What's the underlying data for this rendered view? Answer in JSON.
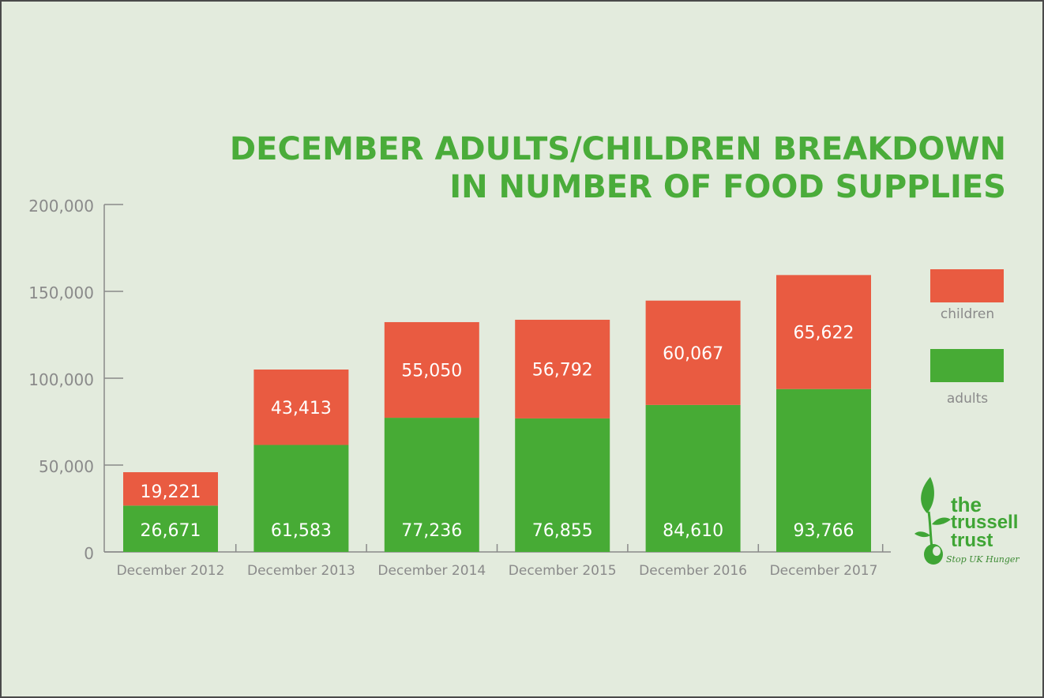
{
  "title_line1": "DECEMBER ADULTS/CHILDREN BREAKDOWN",
  "title_line2": "IN NUMBER OF FOOD SUPPLIES",
  "colors": {
    "background": "#e3ebdd",
    "adults": "#47ab35",
    "children": "#e95b41",
    "title": "#4aac3a",
    "axis": "#8a8a8a"
  },
  "legend": {
    "children_label": "children",
    "adults_label": "adults"
  },
  "logo": {
    "line1": "the",
    "line2": "trussell",
    "line3": "trust",
    "tagline": "Stop UK Hunger"
  },
  "chart_data": {
    "type": "bar",
    "stacked": true,
    "categories": [
      "December 2012",
      "December 2013",
      "December 2014",
      "December 2015",
      "December 2016",
      "December 2017"
    ],
    "series": [
      {
        "name": "adults",
        "values": [
          26671,
          61583,
          77236,
          76855,
          84610,
          93766
        ]
      },
      {
        "name": "children",
        "values": [
          19221,
          43413,
          55050,
          56792,
          60067,
          65622
        ]
      }
    ],
    "data_labels": {
      "adults": [
        "26,671",
        "61,583",
        "77,236",
        "76,855",
        "84,610",
        "93,766"
      ],
      "children": [
        "19,221",
        "43,413",
        "55,050",
        "56,792",
        "60,067",
        "65,622"
      ]
    },
    "yticks": [
      "0",
      "50,000",
      "100,000",
      "150,000",
      "200,000"
    ],
    "ytick_values": [
      0,
      50000,
      100000,
      150000,
      200000
    ],
    "ylim": [
      0,
      200000
    ],
    "title": "DECEMBER ADULTS/CHILDREN BREAKDOWN IN NUMBER OF FOOD SUPPLIES",
    "xlabel": "",
    "ylabel": "",
    "grid": false,
    "legend_position": "right"
  }
}
